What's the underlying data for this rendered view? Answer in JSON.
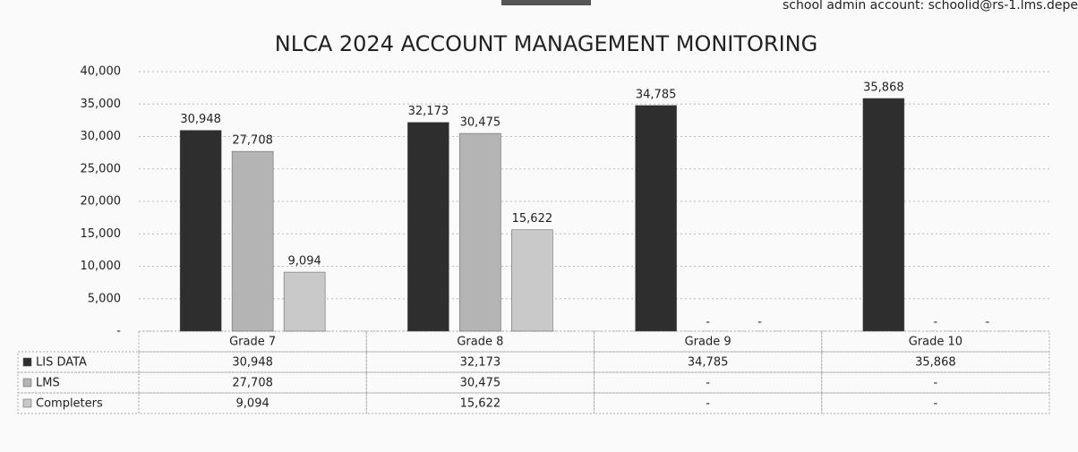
{
  "header_text": "school admin account: schoolid@rs-1.lms.depe",
  "chart_data": {
    "type": "bar",
    "title": "NLCA 2024 ACCOUNT MANAGEMENT MONITORING",
    "categories": [
      "Grade 7",
      "Grade 8",
      "Grade 9",
      "Grade 10"
    ],
    "series": [
      {
        "name": "LIS DATA",
        "color": "#2e2e2e",
        "values": [
          30948,
          32173,
          34785,
          35868
        ],
        "value_labels": [
          "30,948",
          "32,173",
          "34,785",
          "35,868"
        ]
      },
      {
        "name": "LMS",
        "color": "#b4b4b4",
        "values": [
          27708,
          30475,
          null,
          null
        ],
        "value_labels": [
          "27,708",
          "30,475",
          "-",
          "-"
        ]
      },
      {
        "name": "Completers",
        "color": "#c9c9c9",
        "values": [
          9094,
          15622,
          null,
          null
        ],
        "value_labels": [
          "9,094",
          "15,622",
          "-",
          "-"
        ]
      }
    ],
    "ylim": [
      0,
      40000
    ],
    "yticks": [
      {
        "value": 0,
        "label": "-"
      },
      {
        "value": 5000,
        "label": "5,000"
      },
      {
        "value": 10000,
        "label": "10,000"
      },
      {
        "value": 15000,
        "label": "15,000"
      },
      {
        "value": 20000,
        "label": "20,000"
      },
      {
        "value": 25000,
        "label": "25,000"
      },
      {
        "value": 30000,
        "label": "30,000"
      },
      {
        "value": 35000,
        "label": "35,000"
      },
      {
        "value": 40000,
        "label": "40,000"
      }
    ],
    "grid": true,
    "data_table": true
  }
}
